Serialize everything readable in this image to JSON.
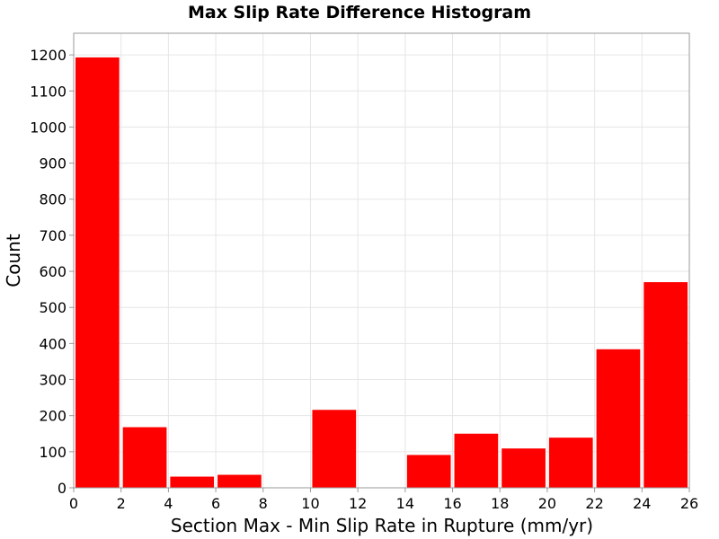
{
  "chart_data": {
    "type": "bar",
    "title": "Max Slip Rate Difference Histogram",
    "xlabel": "Section Max - Min Slip Rate in Rupture (mm/yr)",
    "ylabel": "Count",
    "xlim": [
      0,
      26
    ],
    "ylim": [
      0,
      1260
    ],
    "x_ticks": [
      0,
      2,
      4,
      6,
      8,
      10,
      12,
      14,
      16,
      18,
      20,
      22,
      24,
      26
    ],
    "y_ticks": [
      0,
      100,
      200,
      300,
      400,
      500,
      600,
      700,
      800,
      900,
      1000,
      1100,
      1200
    ],
    "bins": [
      {
        "x0": 0,
        "x1": 2,
        "value": 1193
      },
      {
        "x0": 2,
        "x1": 4,
        "value": 168
      },
      {
        "x0": 4,
        "x1": 6,
        "value": 31
      },
      {
        "x0": 6,
        "x1": 8,
        "value": 36
      },
      {
        "x0": 8,
        "x1": 10,
        "value": 0
      },
      {
        "x0": 10,
        "x1": 12,
        "value": 216
      },
      {
        "x0": 12,
        "x1": 14,
        "value": 0
      },
      {
        "x0": 14,
        "x1": 16,
        "value": 91
      },
      {
        "x0": 16,
        "x1": 18,
        "value": 150
      },
      {
        "x0": 18,
        "x1": 20,
        "value": 109
      },
      {
        "x0": 20,
        "x1": 22,
        "value": 139
      },
      {
        "x0": 22,
        "x1": 24,
        "value": 384
      },
      {
        "x0": 24,
        "x1": 26,
        "value": 570
      }
    ],
    "bar_color": "#ff0000",
    "grid": true,
    "grid_color": "#e6e6e6",
    "legend": "none"
  }
}
